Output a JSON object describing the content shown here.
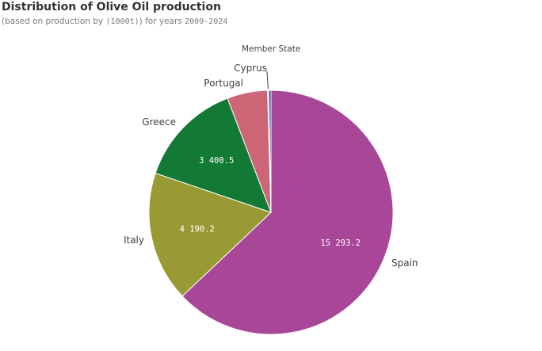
{
  "header": {
    "title": "Distribution of Olive Oil production",
    "subtitle_prefix": "(based on production by ",
    "subtitle_unit": "(1000t)",
    "subtitle_mid": " for years ",
    "subtitle_years": "2009-2024"
  },
  "chart_data": {
    "type": "pie",
    "title": "Distribution of Olive Oil production",
    "subtitle": "(based on production by (1000t)) for years 2009-2024",
    "dimension_label": "Member State",
    "unit": "1000t",
    "slices": [
      {
        "label": "Spain",
        "value": 15293.2,
        "value_label": "15 293.2",
        "color": "#a84698"
      },
      {
        "label": "Italy",
        "value": 4190.2,
        "value_label": "4 190.2",
        "color": "#9a9a34"
      },
      {
        "label": "Greece",
        "value": 3400.5,
        "value_label": "3 400.5",
        "color": "#137a36"
      },
      {
        "label": "Portugal",
        "value": 1300,
        "value_label": "",
        "color": "#cc6677"
      },
      {
        "label": "Cyprus",
        "value": 40,
        "value_label": "",
        "color": "#88ccee"
      },
      {
        "label": "",
        "value": 70,
        "value_label": "",
        "color": "#2a3c8f"
      }
    ]
  }
}
